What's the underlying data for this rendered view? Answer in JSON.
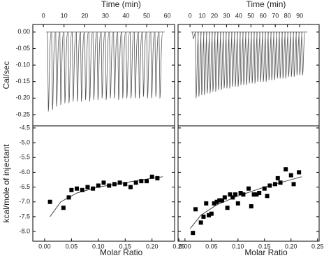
{
  "chart_data": [
    {
      "type": "line",
      "x_label": "Time (min)",
      "y_label": "Cal/sec",
      "color": "#555555",
      "x": [
        2,
        4,
        6,
        8,
        10,
        12,
        14,
        16,
        18,
        20,
        22,
        24,
        26,
        28,
        30,
        32,
        34,
        36,
        38,
        40,
        42,
        44,
        46,
        48,
        50,
        52,
        54,
        56
      ],
      "values": [
        -0.24,
        -0.235,
        -0.225,
        -0.22,
        -0.215,
        -0.215,
        -0.21,
        -0.21,
        -0.21,
        -0.205,
        -0.21,
        -0.205,
        -0.205,
        -0.2,
        -0.205,
        -0.2,
        -0.2,
        -0.205,
        -0.2,
        -0.2,
        -0.2,
        -0.2,
        -0.2,
        -0.195,
        -0.2,
        -0.2,
        -0.195,
        -0.2
      ],
      "xlim": [
        -5.1,
        63.5
      ],
      "xticks": [
        0,
        10,
        20,
        30,
        40,
        50,
        60
      ],
      "ylim": [
        -0.284,
        0.023
      ],
      "yticks": [
        {
          "value": 0,
          "label": "0.00"
        },
        -0.05,
        {
          "value": -0.1,
          "label": "-0.10"
        },
        -0.15,
        {
          "value": -0.2,
          "label": "-0.20"
        },
        -0.25
      ]
    },
    {
      "type": "line",
      "x_label": "Time (min)",
      "color": "#555555",
      "x": [
        2,
        4.3,
        6.6,
        8.9,
        11.2,
        13.5,
        15.8,
        18.1,
        20.4,
        22.7,
        25,
        27.3,
        29.6,
        31.9,
        34.2,
        36.5,
        38.8,
        41.1,
        43.4,
        45.7,
        48,
        50.3,
        52.6,
        54.9,
        57.2,
        59.5,
        61.8,
        64.1,
        66.4,
        68.7,
        71,
        73.3,
        75.6,
        77.9,
        80.2,
        82.5,
        84.8,
        87.1,
        89.4,
        91.7
      ],
      "values": [
        -0.02,
        -0.2,
        -0.195,
        -0.19,
        -0.19,
        -0.185,
        -0.185,
        -0.18,
        -0.18,
        -0.175,
        -0.175,
        -0.17,
        -0.17,
        -0.17,
        -0.165,
        -0.165,
        -0.165,
        -0.16,
        -0.16,
        -0.16,
        -0.155,
        -0.155,
        -0.155,
        -0.15,
        -0.15,
        -0.15,
        -0.15,
        -0.145,
        -0.145,
        -0.145,
        -0.14,
        -0.14,
        -0.14,
        -0.14,
        -0.135,
        -0.135,
        -0.135,
        -0.13,
        -0.13,
        -0.13
      ],
      "xlim": [
        -9.8,
        106
      ],
      "xticks": [
        0,
        10,
        20,
        30,
        40,
        50,
        60,
        70,
        80,
        90
      ],
      "ylim": [
        -0.284,
        0.023
      ],
      "yticks": [
        0,
        -0.05,
        -0.1,
        -0.15,
        -0.2,
        -0.25
      ]
    },
    {
      "type": "scatter",
      "x_label": "Molar Ratio",
      "y_label": "kcal/mole of injectant",
      "color": "#000000",
      "x": [
        0.01,
        0.035,
        0.045,
        0.05,
        0.06,
        0.07,
        0.08,
        0.09,
        0.1,
        0.11,
        0.12,
        0.13,
        0.14,
        0.15,
        0.16,
        0.17,
        0.18,
        0.19,
        0.2,
        0.21
      ],
      "values": [
        -7.0,
        -7.2,
        -6.85,
        -6.6,
        -6.55,
        -6.6,
        -6.5,
        -6.55,
        -6.45,
        -6.35,
        -6.45,
        -6.4,
        -6.35,
        -6.4,
        -6.5,
        -6.35,
        -6.3,
        -6.3,
        -6.15,
        -6.2
      ],
      "fit": {
        "x": [
          0.01,
          0.03,
          0.06,
          0.1,
          0.15,
          0.2,
          0.22
        ],
        "values": [
          -7.5,
          -7.0,
          -6.7,
          -6.5,
          -6.35,
          -6.2,
          -6.15
        ]
      },
      "xlim": [
        -0.022,
        0.242
      ],
      "xticks": [
        {
          "value": 0,
          "label": "0.00"
        },
        0.05,
        {
          "value": 0.1,
          "label": "0.10"
        },
        0.15,
        {
          "value": 0.2,
          "label": "0.20"
        },
        0.25
      ],
      "ylim": [
        -8.33,
        -4.43
      ],
      "yticks": [
        -4.5,
        {
          "value": -5,
          "label": "-5.0"
        },
        -5.5,
        {
          "value": -6,
          "label": "-6.0"
        },
        -6.5,
        {
          "value": -7,
          "label": "-7.0"
        },
        -7.5,
        {
          "value": -8,
          "label": "-8.0"
        }
      ]
    },
    {
      "type": "scatter",
      "x_label": "Molar Ratio",
      "color": "#000000",
      "x": [
        0.015,
        0.02,
        0.03,
        0.035,
        0.04,
        0.045,
        0.05,
        0.055,
        0.06,
        0.065,
        0.07,
        0.075,
        0.08,
        0.085,
        0.09,
        0.095,
        0.1,
        0.105,
        0.11,
        0.12,
        0.125,
        0.13,
        0.135,
        0.14,
        0.15,
        0.155,
        0.16,
        0.17,
        0.175,
        0.18,
        0.19,
        0.2,
        0.205,
        0.215
      ],
      "values": [
        -8.05,
        -7.25,
        -7.7,
        -7.5,
        -7.05,
        -7.45,
        -7.4,
        -7.05,
        -7.0,
        -6.95,
        -6.95,
        -6.85,
        -7.2,
        -6.75,
        -6.85,
        -6.75,
        -7.05,
        -6.7,
        -6.75,
        -6.55,
        -7.15,
        -6.75,
        -6.75,
        -6.7,
        -6.55,
        -6.8,
        -6.45,
        -6.4,
        -6.2,
        -6.35,
        -5.9,
        -6.1,
        -6.4,
        -6.0
      ],
      "fit": {
        "x": [
          0.01,
          0.03,
          0.06,
          0.1,
          0.15,
          0.2,
          0.22
        ],
        "values": [
          -7.9,
          -7.45,
          -7.1,
          -6.8,
          -6.5,
          -6.25,
          -6.15
        ]
      },
      "xlim": [
        -0.013,
        0.253
      ],
      "xticks": [
        {
          "value": 0,
          "label": "0.00"
        },
        0.05,
        {
          "value": 0.1,
          "label": "0.10"
        },
        0.15,
        {
          "value": 0.2,
          "label": "0.20"
        },
        0.25
      ],
      "ylim": [
        -8.33,
        -4.43
      ],
      "yticks": [
        -4.5,
        -5,
        -5.5,
        -6,
        -6.5,
        -7,
        -7.5,
        -8
      ]
    }
  ]
}
